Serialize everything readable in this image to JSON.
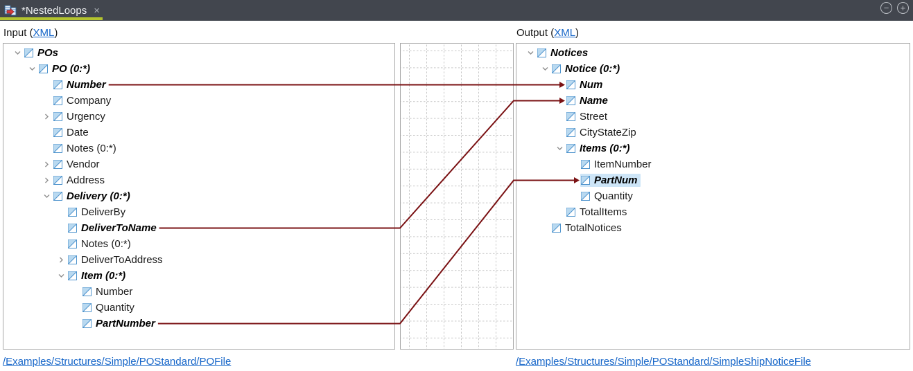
{
  "tab_bar": {
    "title": "*NestedLoops",
    "close_icon": "×",
    "collapse_button_glyph": "−",
    "expand_button_glyph": "+"
  },
  "input_pane": {
    "header_prefix": "Input (",
    "header_link": "XML",
    "header_suffix": ")",
    "file_link": "/Examples/Structures/Simple/POStandard/POFile",
    "rows": [
      {
        "label": "POs",
        "level": 0,
        "chevron": "down",
        "bold": true,
        "selected": false
      },
      {
        "label": "PO (0:*)",
        "level": 1,
        "chevron": "down",
        "bold": true,
        "selected": false
      },
      {
        "label": "Number",
        "level": 2,
        "chevron": null,
        "bold": true,
        "selected": false
      },
      {
        "label": "Company",
        "level": 2,
        "chevron": null,
        "bold": false,
        "selected": false
      },
      {
        "label": "Urgency",
        "level": 2,
        "chevron": "right",
        "bold": false,
        "selected": false
      },
      {
        "label": "Date",
        "level": 2,
        "chevron": null,
        "bold": false,
        "selected": false
      },
      {
        "label": "Notes (0:*)",
        "level": 2,
        "chevron": null,
        "bold": false,
        "selected": false
      },
      {
        "label": "Vendor",
        "level": 2,
        "chevron": "right",
        "bold": false,
        "selected": false
      },
      {
        "label": "Address",
        "level": 2,
        "chevron": "right",
        "bold": false,
        "selected": false
      },
      {
        "label": "Delivery (0:*)",
        "level": 2,
        "chevron": "down",
        "bold": true,
        "selected": false
      },
      {
        "label": "DeliverBy",
        "level": 3,
        "chevron": null,
        "bold": false,
        "selected": false
      },
      {
        "label": "DeliverToName",
        "level": 3,
        "chevron": null,
        "bold": true,
        "selected": false
      },
      {
        "label": "Notes (0:*)",
        "level": 3,
        "chevron": null,
        "bold": false,
        "selected": false
      },
      {
        "label": "DeliverToAddress",
        "level": 3,
        "chevron": "right",
        "bold": false,
        "selected": false
      },
      {
        "label": "Item (0:*)",
        "level": 3,
        "chevron": "down",
        "bold": true,
        "selected": false
      },
      {
        "label": "Number",
        "level": 4,
        "chevron": null,
        "bold": false,
        "selected": false
      },
      {
        "label": "Quantity",
        "level": 4,
        "chevron": null,
        "bold": false,
        "selected": false
      },
      {
        "label": "PartNumber",
        "level": 4,
        "chevron": null,
        "bold": true,
        "selected": false
      }
    ]
  },
  "output_pane": {
    "header_prefix": "Output (",
    "header_link": "XML",
    "header_suffix": ")",
    "file_link": "/Examples/Structures/Simple/POStandard/SimpleShipNoticeFile",
    "rows": [
      {
        "label": "Notices",
        "level": 0,
        "chevron": "down",
        "bold": true,
        "selected": false
      },
      {
        "label": "Notice (0:*)",
        "level": 1,
        "chevron": "down",
        "bold": true,
        "selected": false
      },
      {
        "label": "Num",
        "level": 2,
        "chevron": null,
        "bold": true,
        "selected": false
      },
      {
        "label": "Name",
        "level": 2,
        "chevron": null,
        "bold": true,
        "selected": false
      },
      {
        "label": "Street",
        "level": 2,
        "chevron": null,
        "bold": false,
        "selected": false
      },
      {
        "label": "CityStateZip",
        "level": 2,
        "chevron": null,
        "bold": false,
        "selected": false
      },
      {
        "label": "Items (0:*)",
        "level": 2,
        "chevron": "down",
        "bold": true,
        "selected": false
      },
      {
        "label": "ItemNumber",
        "level": 3,
        "chevron": null,
        "bold": false,
        "selected": false
      },
      {
        "label": "PartNum",
        "level": 3,
        "chevron": null,
        "bold": true,
        "selected": true
      },
      {
        "label": "Quantity",
        "level": 3,
        "chevron": null,
        "bold": false,
        "selected": false
      },
      {
        "label": "TotalItems",
        "level": 2,
        "chevron": null,
        "bold": false,
        "selected": false
      },
      {
        "label": "TotalNotices",
        "level": 1,
        "chevron": null,
        "bold": false,
        "selected": false
      }
    ]
  },
  "connections": [
    {
      "from": "Number",
      "from_row": 2,
      "to": "Num",
      "to_row": 2
    },
    {
      "from": "DeliverToName",
      "from_row": 11,
      "to": "Name",
      "to_row": 3
    },
    {
      "from": "PartNumber",
      "from_row": 17,
      "to": "PartNum",
      "to_row": 8
    }
  ],
  "colors": {
    "tab_bar_background": "#42464e",
    "active_tab_underline": "#b3c32e",
    "connection_line": "#7a1113",
    "link_blue": "#1565c8",
    "selection_highlight": "#cde5f7",
    "node_icon_blue": "#4f94cd",
    "node_icon_fill": "#b9d9f0"
  }
}
